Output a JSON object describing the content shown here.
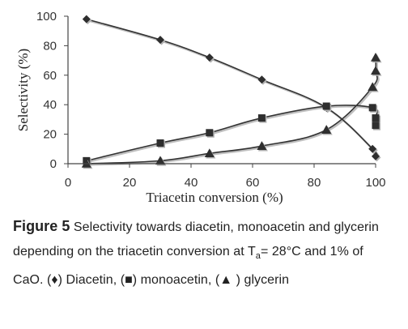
{
  "chart_data": {
    "type": "line",
    "xlabel": "Triacetin conversion (%)",
    "ylabel": "Selectivity (%)",
    "xlim": [
      0,
      100
    ],
    "ylim": [
      0,
      100
    ],
    "xticks": [
      "0",
      "20",
      "40",
      "60",
      "80",
      "100"
    ],
    "yticks": [
      "0",
      "20",
      "40",
      "60",
      "80",
      "100"
    ],
    "grid": false,
    "legend": "none (identified in caption)",
    "series": [
      {
        "name": "Diacetin",
        "marker": "diamond",
        "color": "#333333",
        "x": [
          6,
          30,
          46,
          63,
          84,
          99,
          100
        ],
        "y": [
          98,
          84,
          72,
          57,
          38,
          10,
          5
        ]
      },
      {
        "name": "monoacetin",
        "marker": "square",
        "color": "#333333",
        "x": [
          6,
          30,
          46,
          63,
          84,
          99,
          100,
          100
        ],
        "y": [
          2,
          14,
          21,
          31,
          39,
          38,
          31,
          26
        ]
      },
      {
        "name": "glycerin",
        "marker": "triangle",
        "color": "#333333",
        "x": [
          6,
          30,
          46,
          63,
          84,
          99,
          100,
          100
        ],
        "y": [
          0,
          2,
          7,
          12,
          23,
          52,
          63,
          72
        ]
      }
    ]
  },
  "caption": {
    "label": "Figure 5",
    "text_1": " Selectivity towards diacetin, monoacetin and glycerin depending on the triacetin conversion at T",
    "subscript": "a",
    "text_2": "= 28°C and 1% of CaO. (♦) Diacetin, (■) monoacetin, (▲ ) glycerin"
  }
}
